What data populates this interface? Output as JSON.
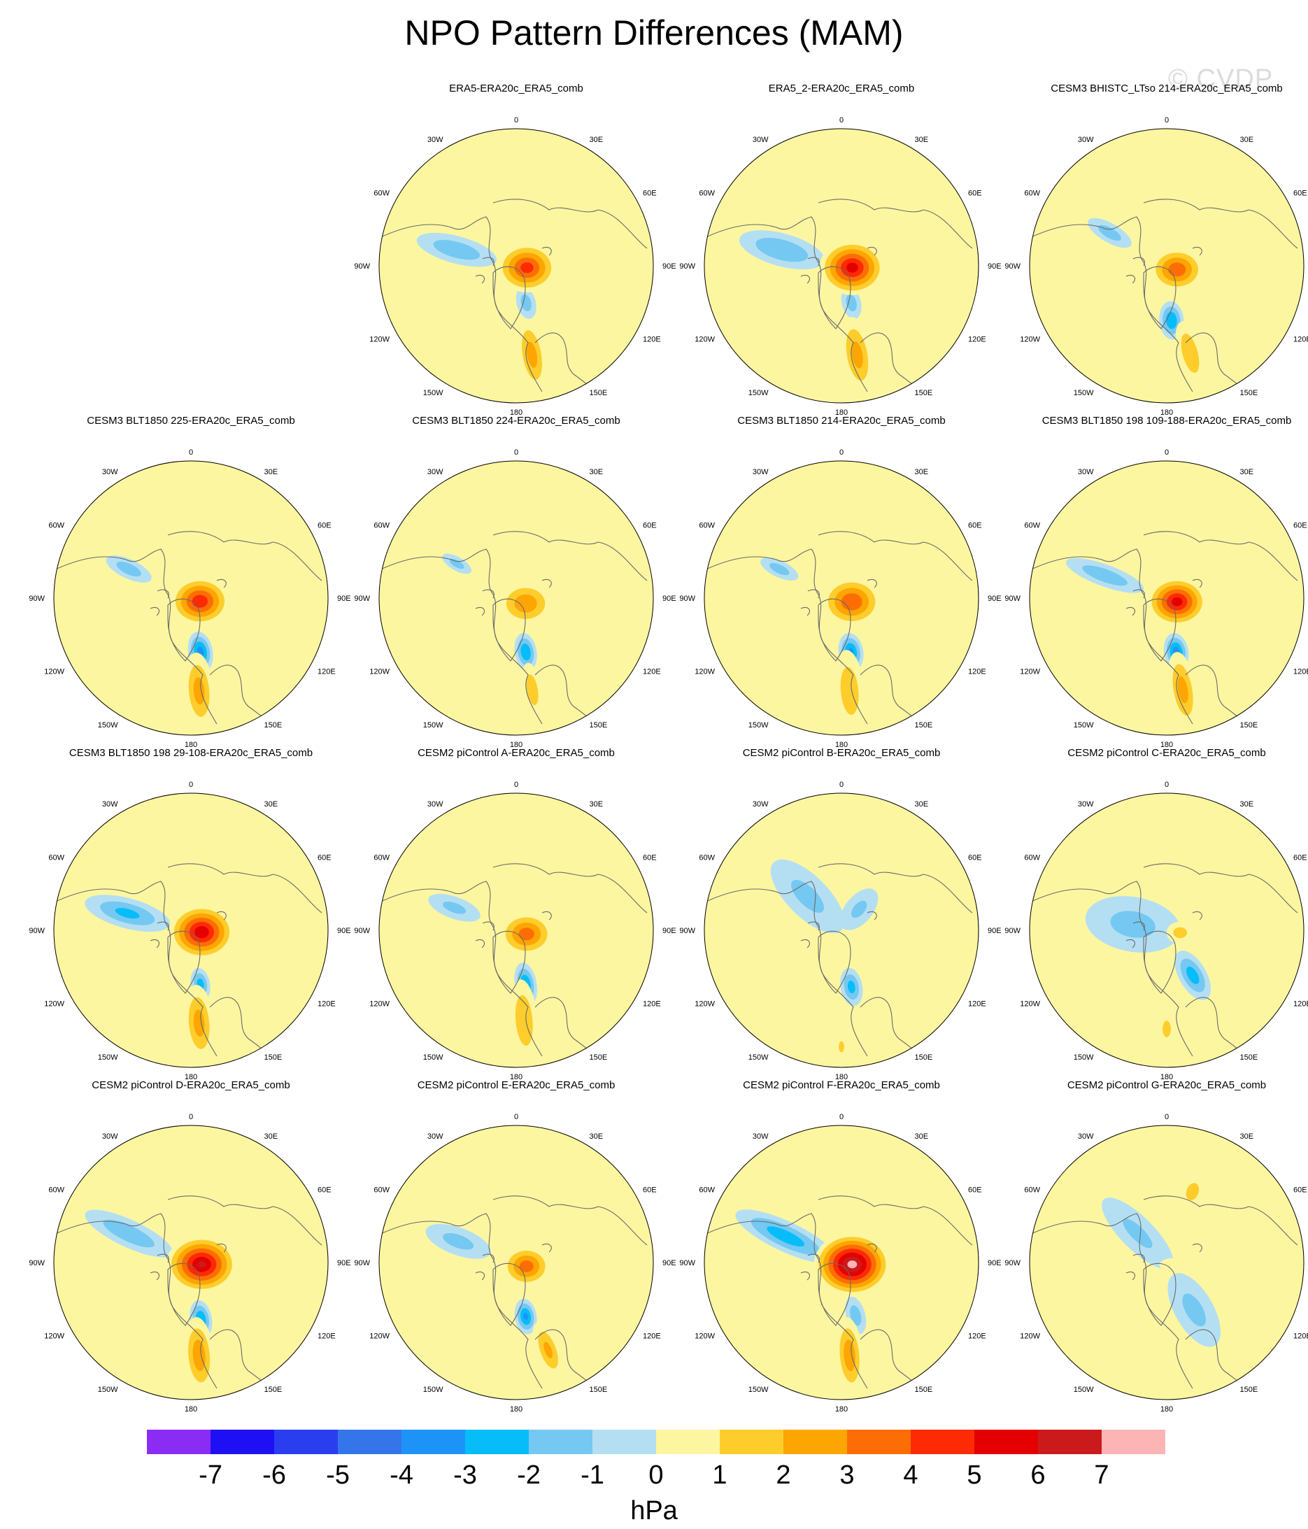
{
  "title": "NPO Pattern Differences (MAM)",
  "watermark": "© CVDP",
  "longitude_labels": [
    "180",
    "150E",
    "120E",
    "90E",
    "60E",
    "30E",
    "0",
    "30W",
    "60W",
    "90W",
    "120W",
    "150W"
  ],
  "panels": [
    {
      "title": "ERA5-ERA20c_ERA5_comb",
      "pos": 1,
      "features": [
        {
          "type": "pos",
          "lon": 170,
          "r": 0.66,
          "a": 0.27,
          "b": 0.1,
          "peak": 2.5
        },
        {
          "type": "neg",
          "lon": 165,
          "r": 0.28,
          "a": 0.12,
          "b": 0.07,
          "peak": -1.5
        },
        {
          "type": "pos",
          "lon": 100,
          "r": 0.08,
          "a": 0.22,
          "b": 0.18,
          "peak": 4.5
        },
        {
          "type": "neg",
          "lon": -75,
          "r": 0.45,
          "a": 0.3,
          "b": 0.1,
          "peak": -1.8
        }
      ]
    },
    {
      "title": "ERA5_2-ERA20c_ERA5_comb",
      "pos": 2,
      "features": [
        {
          "type": "pos",
          "lon": 170,
          "r": 0.66,
          "a": 0.28,
          "b": 0.11,
          "peak": 2.5
        },
        {
          "type": "neg",
          "lon": 165,
          "r": 0.28,
          "a": 0.12,
          "b": 0.07,
          "peak": -1.5
        },
        {
          "type": "pos",
          "lon": 100,
          "r": 0.08,
          "a": 0.24,
          "b": 0.2,
          "peak": 5.5
        },
        {
          "type": "neg",
          "lon": -75,
          "r": 0.45,
          "a": 0.32,
          "b": 0.12,
          "peak": -2.0
        }
      ]
    },
    {
      "title": "CESM3 BHISTC_LTso 214-ERA20c_ERA5_comb",
      "pos": 3,
      "features": [
        {
          "type": "pos",
          "lon": 165,
          "r": 0.66,
          "a": 0.24,
          "b": 0.09,
          "peak": 2.0
        },
        {
          "type": "neg",
          "lon": 175,
          "r": 0.4,
          "a": 0.14,
          "b": 0.09,
          "peak": -3.0
        },
        {
          "type": "pos",
          "lon": 110,
          "r": 0.08,
          "a": 0.2,
          "b": 0.16,
          "peak": 3.8
        },
        {
          "type": "neg",
          "lon": -60,
          "r": 0.48,
          "a": 0.18,
          "b": 0.07,
          "peak": -1.5
        }
      ]
    },
    {
      "title": "CESM3 BLT1850 225-ERA20c_ERA5_comb",
      "pos": 4,
      "features": [
        {
          "type": "pos",
          "lon": 175,
          "r": 0.68,
          "a": 0.28,
          "b": 0.11,
          "peak": 2.5
        },
        {
          "type": "neg",
          "lon": 170,
          "r": 0.4,
          "a": 0.15,
          "b": 0.09,
          "peak": -3.5
        },
        {
          "type": "pos",
          "lon": 110,
          "r": 0.07,
          "a": 0.22,
          "b": 0.18,
          "peak": 4.8
        },
        {
          "type": "neg",
          "lon": -65,
          "r": 0.5,
          "a": 0.18,
          "b": 0.07,
          "peak": -1.6
        }
      ]
    },
    {
      "title": "CESM3 BLT1850 224-ERA20c_ERA5_comb",
      "pos": 5,
      "features": [
        {
          "type": "pos",
          "lon": 170,
          "r": 0.68,
          "a": 0.2,
          "b": 0.07,
          "peak": 1.7
        },
        {
          "type": "neg",
          "lon": 170,
          "r": 0.4,
          "a": 0.14,
          "b": 0.08,
          "peak": -3.0
        },
        {
          "type": "pos",
          "lon": 120,
          "r": 0.08,
          "a": 0.2,
          "b": 0.16,
          "peak": 2.8
        },
        {
          "type": "neg",
          "lon": -60,
          "r": 0.5,
          "a": 0.12,
          "b": 0.05,
          "peak": -1.4
        }
      ]
    },
    {
      "title": "CESM3 BLT1850 214-ERA20c_ERA5_comb",
      "pos": 6,
      "features": [
        {
          "type": "pos",
          "lon": 175,
          "r": 0.68,
          "a": 0.3,
          "b": 0.11,
          "peak": 1.8
        },
        {
          "type": "neg",
          "lon": 170,
          "r": 0.4,
          "a": 0.14,
          "b": 0.09,
          "peak": -3.2
        },
        {
          "type": "pos",
          "lon": 110,
          "r": 0.08,
          "a": 0.22,
          "b": 0.18,
          "peak": 4.0
        },
        {
          "type": "neg",
          "lon": -65,
          "r": 0.5,
          "a": 0.15,
          "b": 0.06,
          "peak": -1.5
        }
      ]
    },
    {
      "title": "CESM3 BLT1850 198 109-188-ERA20c_ERA5_comb",
      "pos": 7,
      "features": [
        {
          "type": "pos",
          "lon": 170,
          "r": 0.68,
          "a": 0.28,
          "b": 0.1,
          "peak": 2.5
        },
        {
          "type": "neg",
          "lon": 170,
          "r": 0.4,
          "a": 0.14,
          "b": 0.09,
          "peak": -3.5
        },
        {
          "type": "pos",
          "lon": 110,
          "r": 0.08,
          "a": 0.22,
          "b": 0.18,
          "peak": 5.5
        },
        {
          "type": "neg",
          "lon": -70,
          "r": 0.48,
          "a": 0.3,
          "b": 0.08,
          "peak": -1.8
        }
      ]
    },
    {
      "title": "CESM3 BLT1850 198 29-108-ERA20c_ERA5_comb",
      "pos": 8,
      "features": [
        {
          "type": "pos",
          "lon": 175,
          "r": 0.68,
          "a": 0.28,
          "b": 0.11,
          "peak": 2.5
        },
        {
          "type": "neg",
          "lon": 170,
          "r": 0.4,
          "a": 0.12,
          "b": 0.07,
          "peak": -2.5
        },
        {
          "type": "pos",
          "lon": 100,
          "r": 0.08,
          "a": 0.24,
          "b": 0.2,
          "peak": 5.8
        },
        {
          "type": "neg",
          "lon": -75,
          "r": 0.48,
          "a": 0.32,
          "b": 0.11,
          "peak": -2.2
        }
      ]
    },
    {
      "title": "CESM2 piControl A-ERA20c_ERA5_comb",
      "pos": 9,
      "features": [
        {
          "type": "pos",
          "lon": 175,
          "r": 0.66,
          "a": 0.3,
          "b": 0.1,
          "peak": 2.0
        },
        {
          "type": "neg",
          "lon": 170,
          "r": 0.4,
          "a": 0.16,
          "b": 0.08,
          "peak": -3.0
        },
        {
          "type": "pos",
          "lon": 110,
          "r": 0.08,
          "a": 0.2,
          "b": 0.16,
          "peak": 3.6
        },
        {
          "type": "neg",
          "lon": -70,
          "r": 0.48,
          "a": 0.2,
          "b": 0.08,
          "peak": -1.2
        }
      ]
    },
    {
      "title": "CESM2 piControl B-ERA20c_ERA5_comb",
      "pos": 10,
      "features": [
        {
          "type": "pos",
          "lon": 180,
          "r": 0.85,
          "a": 0.08,
          "b": 0.04,
          "peak": 1.4
        },
        {
          "type": "neg",
          "lon": 170,
          "r": 0.42,
          "a": 0.14,
          "b": 0.08,
          "peak": -2.4
        },
        {
          "type": "neg",
          "lon": -45,
          "r": 0.35,
          "a": 0.35,
          "b": 0.15,
          "peak": -1.2
        },
        {
          "type": "neg",
          "lon": 40,
          "r": 0.2,
          "a": 0.18,
          "b": 0.1,
          "peak": -1.1
        }
      ]
    },
    {
      "title": "CESM2 piControl C-ERA20c_ERA5_comb",
      "pos": 11,
      "features": [
        {
          "type": "pos",
          "lon": 180,
          "r": 0.72,
          "a": 0.12,
          "b": 0.06,
          "peak": 1.4
        },
        {
          "type": "neg",
          "lon": 150,
          "r": 0.38,
          "a": 0.2,
          "b": 0.1,
          "peak": -2.5
        },
        {
          "type": "neg",
          "lon": -80,
          "r": 0.25,
          "a": 0.35,
          "b": 0.2,
          "peak": -1.3
        },
        {
          "type": "pos",
          "lon": 100,
          "r": 0.1,
          "a": 0.1,
          "b": 0.08,
          "peak": 1.4
        }
      ]
    },
    {
      "title": "CESM2 piControl D-ERA20c_ERA5_comb",
      "pos": 12,
      "features": [
        {
          "type": "pos",
          "lon": 175,
          "r": 0.68,
          "a": 0.28,
          "b": 0.11,
          "peak": 2.8
        },
        {
          "type": "neg",
          "lon": 170,
          "r": 0.42,
          "a": 0.14,
          "b": 0.08,
          "peak": -3.0
        },
        {
          "type": "pos",
          "lon": 100,
          "r": 0.08,
          "a": 0.26,
          "b": 0.21,
          "peak": 6.2
        },
        {
          "type": "neg",
          "lon": -65,
          "r": 0.5,
          "a": 0.35,
          "b": 0.1,
          "peak": -1.8
        }
      ]
    },
    {
      "title": "CESM2 piControl E-ERA20c_ERA5_comb",
      "pos": 13,
      "features": [
        {
          "type": "pos",
          "lon": 160,
          "r": 0.68,
          "a": 0.22,
          "b": 0.09,
          "peak": 2.2
        },
        {
          "type": "neg",
          "lon": 170,
          "r": 0.4,
          "a": 0.13,
          "b": 0.08,
          "peak": -3.2
        },
        {
          "type": "pos",
          "lon": 110,
          "r": 0.08,
          "a": 0.18,
          "b": 0.15,
          "peak": 3.6
        },
        {
          "type": "neg",
          "lon": -70,
          "r": 0.45,
          "a": 0.25,
          "b": 0.1,
          "peak": -1.3
        }
      ]
    },
    {
      "title": "CESM2 piControl F-ERA20c_ERA5_comb",
      "pos": 14,
      "features": [
        {
          "type": "pos",
          "lon": 175,
          "r": 0.68,
          "a": 0.28,
          "b": 0.1,
          "peak": 2.8
        },
        {
          "type": "neg",
          "lon": 165,
          "r": 0.4,
          "a": 0.14,
          "b": 0.07,
          "peak": -1.6
        },
        {
          "type": "pos",
          "lon": 100,
          "r": 0.08,
          "a": 0.28,
          "b": 0.23,
          "peak": 7.4
        },
        {
          "type": "neg",
          "lon": -65,
          "r": 0.45,
          "a": 0.4,
          "b": 0.11,
          "peak": -2.6
        }
      ]
    },
    {
      "title": "CESM2 piControl G-ERA20c_ERA5_comb",
      "pos": 15,
      "features": [
        {
          "type": "neg",
          "lon": 150,
          "r": 0.4,
          "a": 0.3,
          "b": 0.14,
          "peak": -1.2
        },
        {
          "type": "neg",
          "lon": -45,
          "r": 0.3,
          "a": 0.35,
          "b": 0.12,
          "peak": -1.1
        },
        {
          "type": "pos",
          "lon": 20,
          "r": 0.55,
          "a": 0.12,
          "b": 0.08,
          "peak": 1.6
        },
        {
          "type": "pos",
          "lon": 110,
          "r": 0.05,
          "a": 0.1,
          "b": 0.05,
          "peak": 0.9
        }
      ]
    }
  ],
  "colorbar": {
    "units": "hPa",
    "labels": [
      "-7",
      "-6",
      "-5",
      "-4",
      "-3",
      "-2",
      "-1",
      "0",
      "1",
      "2",
      "3",
      "4",
      "5",
      "6",
      "7"
    ],
    "colors": [
      "#8b2cf5",
      "#1e0ff5",
      "#2a3ef0",
      "#3575ea",
      "#1e93f7",
      "#06bdf9",
      "#75c8f1",
      "#b4dff3",
      "#fdf6a0",
      "#fecd2c",
      "#fda502",
      "#fc6e05",
      "#fe2a04",
      "#e40000",
      "#cb1a1c",
      "#fdb4b4"
    ]
  }
}
